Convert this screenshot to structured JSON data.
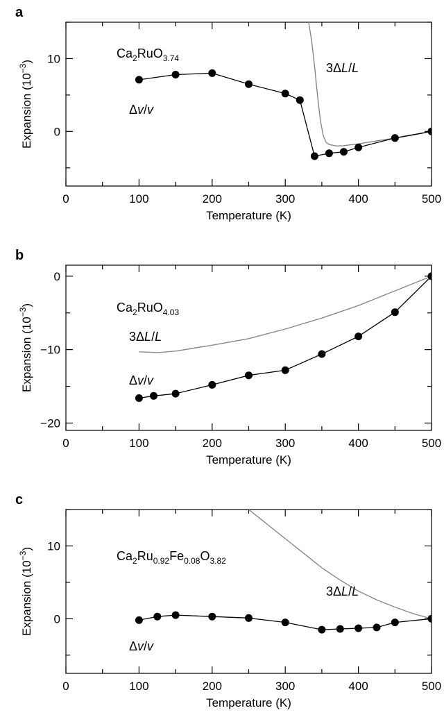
{
  "chart_data": [
    {
      "type": "line",
      "panel": "a",
      "xlabel": "Temperature (K)",
      "ylabel": "Expansion (10−3)",
      "xlim": [
        0,
        500
      ],
      "ylim": [
        -7.5,
        15
      ],
      "xticks": [
        0,
        100,
        200,
        300,
        400,
        500
      ],
      "yticks": [
        0,
        10
      ],
      "grid": false,
      "compound": {
        "main": "Ca",
        "sub1": "2",
        "mid": "RuO",
        "sub2": "3.74"
      },
      "series": [
        {
          "name": "Δv/v",
          "color": "#000000",
          "marker": "circle",
          "x": [
            100,
            150,
            200,
            250,
            300,
            320,
            340,
            360,
            380,
            400,
            450,
            500
          ],
          "y": [
            7.1,
            7.8,
            8.0,
            6.5,
            5.2,
            4.3,
            -3.4,
            -3.0,
            -2.8,
            -2.2,
            -0.9,
            0.0
          ]
        },
        {
          "name": "3ΔL/L",
          "color": "#888888",
          "marker": "none",
          "x": [
            332,
            336,
            340,
            344,
            348,
            352,
            356,
            360,
            370,
            380,
            400,
            425,
            450,
            475,
            500
          ],
          "y": [
            15,
            12.5,
            9.0,
            5.0,
            1.5,
            -0.6,
            -1.5,
            -1.8,
            -2.0,
            -1.95,
            -1.7,
            -1.3,
            -0.9,
            -0.5,
            0.0
          ]
        }
      ]
    },
    {
      "type": "line",
      "panel": "b",
      "xlabel": "Temperature (K)",
      "ylabel": "Expansion (10−3)",
      "xlim": [
        0,
        500
      ],
      "ylim": [
        -21,
        1.5
      ],
      "xticks": [
        0,
        100,
        200,
        300,
        400,
        500
      ],
      "yticks": [
        -20,
        -10,
        0
      ],
      "grid": false,
      "compound": {
        "main": "Ca",
        "sub1": "2",
        "mid": "RuO",
        "sub2": "4.03"
      },
      "series": [
        {
          "name": "Δv/v",
          "color": "#000000",
          "marker": "circle",
          "x": [
            100,
            120,
            150,
            200,
            250,
            300,
            350,
            400,
            450,
            500
          ],
          "y": [
            -16.6,
            -16.3,
            -16.0,
            -14.8,
            -13.5,
            -12.8,
            -10.6,
            -8.2,
            -4.9,
            0.0
          ]
        },
        {
          "name": "3ΔL/L",
          "color": "#888888",
          "marker": "none",
          "x": [
            100,
            125,
            150,
            175,
            200,
            250,
            300,
            350,
            400,
            450,
            500
          ],
          "y": [
            -10.3,
            -10.4,
            -10.2,
            -9.8,
            -9.4,
            -8.5,
            -7.2,
            -5.7,
            -4.0,
            -2.0,
            0.0
          ]
        }
      ]
    },
    {
      "type": "line",
      "panel": "c",
      "xlabel": "Temperature (K)",
      "ylabel": "Expansion (10−3)",
      "xlim": [
        0,
        500
      ],
      "ylim": [
        -7.5,
        15
      ],
      "xticks": [
        0,
        100,
        200,
        300,
        400,
        500
      ],
      "yticks": [
        0,
        10
      ],
      "grid": false,
      "compound": {
        "main": "Ca",
        "sub1": "2",
        "mid": "Ru",
        "sub2": "0.92",
        "mid2": "Fe",
        "sub3": "0.08",
        "mid3": "O",
        "sub4": "3.82"
      },
      "series": [
        {
          "name": "Δv/v",
          "color": "#000000",
          "marker": "circle",
          "x": [
            100,
            125,
            150,
            200,
            250,
            300,
            350,
            375,
            400,
            425,
            450,
            500
          ],
          "y": [
            -0.2,
            0.3,
            0.5,
            0.3,
            0.1,
            -0.5,
            -1.5,
            -1.4,
            -1.3,
            -1.2,
            -0.5,
            0.0
          ]
        },
        {
          "name": "3ΔL/L",
          "color": "#888888",
          "marker": "none",
          "x": [
            250,
            275,
            300,
            325,
            350,
            375,
            400,
            425,
            450,
            475,
            500
          ],
          "y": [
            15.0,
            13.0,
            11.0,
            9.0,
            7.0,
            5.3,
            3.8,
            2.6,
            1.6,
            0.7,
            0.0
          ]
        }
      ]
    }
  ]
}
